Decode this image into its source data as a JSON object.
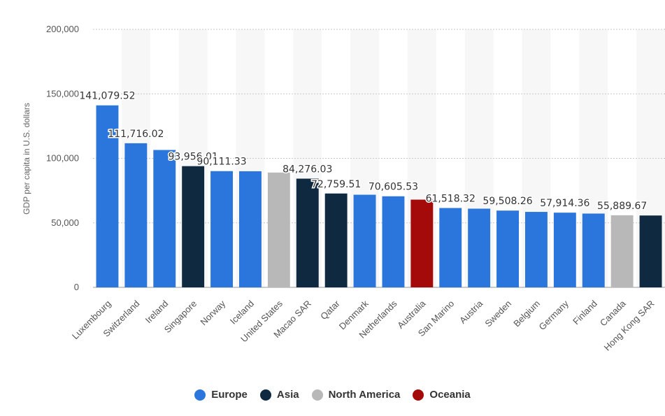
{
  "chart_data": {
    "type": "bar",
    "ylabel": "GDP per capita in U.S. dollars",
    "ylim": [
      0,
      200000
    ],
    "yticks": [
      0,
      50000,
      100000,
      150000,
      200000
    ],
    "ytick_labels": [
      "0",
      "50,000",
      "100,000",
      "150,000",
      "200,000"
    ],
    "grid": true,
    "legend_placement": "bottom-center",
    "categories": [
      "Luxembourg",
      "Switzerland",
      "Ireland",
      "Singapore",
      "Norway",
      "Iceland",
      "United States",
      "Macao SAR",
      "Qatar",
      "Denmark",
      "Netherlands",
      "Australia",
      "San Marino",
      "Austria",
      "Sweden",
      "Belgium",
      "Germany",
      "Finland",
      "Canada",
      "Hong Kong SAR"
    ],
    "values": [
      141079.52,
      111716.02,
      106500,
      93956.01,
      90111.33,
      90000,
      89000,
      84276.03,
      72759.51,
      71800,
      70605.53,
      68000,
      61518.32,
      61000,
      59508.26,
      58500,
      57914.36,
      57200,
      55889.67,
      55700
    ],
    "regions": [
      "Europe",
      "Europe",
      "Europe",
      "Asia",
      "Europe",
      "Europe",
      "North America",
      "Asia",
      "Asia",
      "Europe",
      "Europe",
      "Oceania",
      "Europe",
      "Europe",
      "Europe",
      "Europe",
      "Europe",
      "Europe",
      "North America",
      "Asia"
    ],
    "data_labels": [
      "141,079.52",
      "111,716.02",
      "",
      "93,956.01",
      "90,111.33",
      "",
      "",
      "84,276.03",
      "72,759.51",
      "",
      "70,605.53",
      "",
      "61,518.32",
      "",
      "59,508.26",
      "",
      "57,914.36",
      "",
      "55,889.67",
      ""
    ],
    "legend": [
      {
        "name": "Europe",
        "color": "#2a76dd"
      },
      {
        "name": "Asia",
        "color": "#0f2940"
      },
      {
        "name": "North America",
        "color": "#b8b8b8"
      },
      {
        "name": "Oceania",
        "color": "#a50a0a"
      }
    ]
  }
}
